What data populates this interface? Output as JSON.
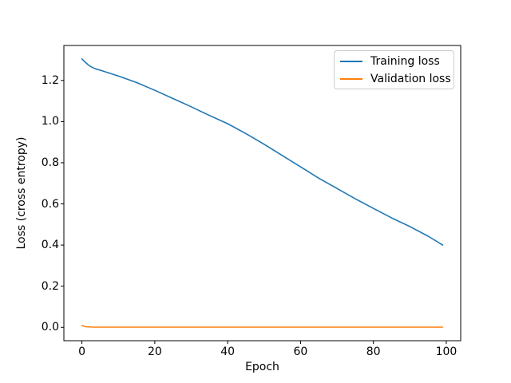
{
  "figure": {
    "background": "#ffffff",
    "frame_color": "#000000"
  },
  "chart_data": {
    "type": "line",
    "title": "",
    "xlabel": "Epoch",
    "ylabel": "Loss (cross entropy)",
    "xlim": [
      -4.95,
      103.95
    ],
    "ylim": [
      -0.065,
      1.37
    ],
    "xticks": [
      0,
      20,
      40,
      60,
      80,
      100
    ],
    "yticks": [
      0.0,
      0.2,
      0.4,
      0.6,
      0.8,
      1.0,
      1.2
    ],
    "xtick_labels": [
      "0",
      "20",
      "40",
      "60",
      "80",
      "100"
    ],
    "ytick_labels": [
      "0.0",
      "0.2",
      "0.4",
      "0.6",
      "0.8",
      "1.0",
      "1.2"
    ],
    "grid": false,
    "legend": {
      "position": "upper right",
      "entries": [
        "Training loss",
        "Validation loss"
      ]
    },
    "x": [
      0,
      1,
      2,
      3,
      4,
      5,
      10,
      15,
      20,
      25,
      30,
      35,
      40,
      45,
      50,
      55,
      60,
      65,
      70,
      75,
      80,
      85,
      90,
      95,
      99
    ],
    "series": [
      {
        "name": "Training loss",
        "color": "#1f77b4",
        "values": [
          1.305,
          1.287,
          1.272,
          1.262,
          1.255,
          1.25,
          1.222,
          1.19,
          1.152,
          1.112,
          1.072,
          1.03,
          0.99,
          0.942,
          0.89,
          0.835,
          0.78,
          0.725,
          0.675,
          0.625,
          0.578,
          0.532,
          0.49,
          0.443,
          0.4
        ]
      },
      {
        "name": "Validation loss",
        "color": "#ff7f0e",
        "values": [
          0.009,
          0.003,
          0.002,
          0.001,
          0.001,
          0.001,
          0.001,
          0.001,
          0.001,
          0.001,
          0.001,
          0.001,
          0.001,
          0.001,
          0.001,
          0.001,
          0.001,
          0.001,
          0.001,
          0.001,
          0.001,
          0.001,
          0.001,
          0.001,
          0.001
        ]
      }
    ]
  }
}
